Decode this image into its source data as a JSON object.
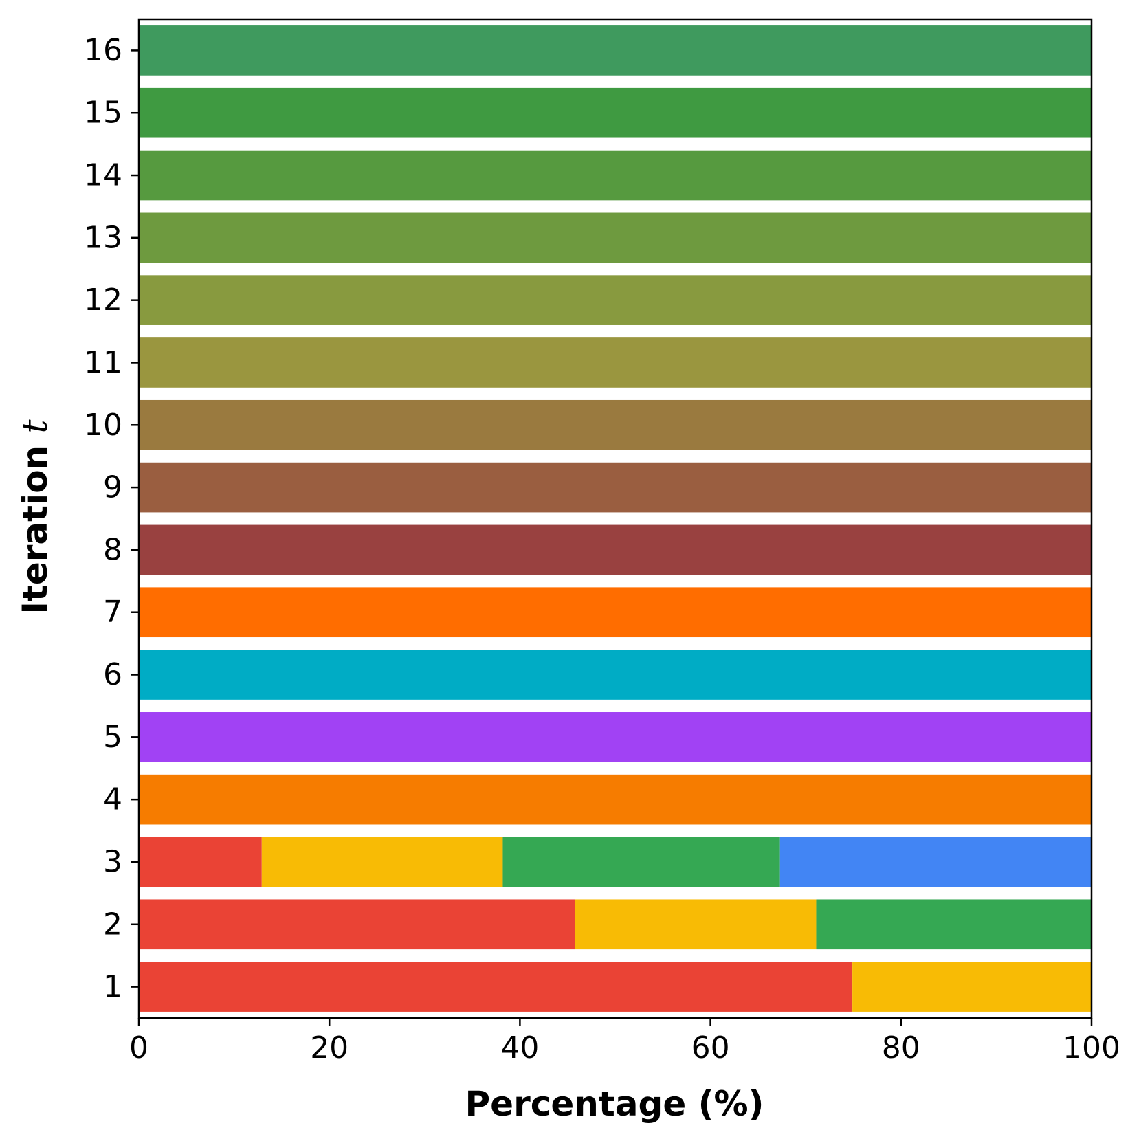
{
  "chart_data": {
    "type": "bar",
    "orientation": "horizontal",
    "stacked": true,
    "title": "",
    "xlabel": "Percentage (%)",
    "ylabel": "Iteration",
    "ylabel_var": "t",
    "xlim": [
      0,
      100
    ],
    "xticks": [
      0,
      20,
      40,
      60,
      80,
      100
    ],
    "categories": [
      "1",
      "2",
      "3",
      "4",
      "5",
      "6",
      "7",
      "8",
      "9",
      "10",
      "11",
      "12",
      "13",
      "14",
      "15",
      "16"
    ],
    "bars": [
      {
        "category": "1",
        "segments": [
          {
            "value": 74.9,
            "color": "#EA4335"
          },
          {
            "value": 25.1,
            "color": "#F8BB05"
          }
        ]
      },
      {
        "category": "2",
        "segments": [
          {
            "value": 45.8,
            "color": "#EA4335"
          },
          {
            "value": 25.3,
            "color": "#F8BB05"
          },
          {
            "value": 28.9,
            "color": "#35A853"
          }
        ]
      },
      {
        "category": "3",
        "segments": [
          {
            "value": 12.9,
            "color": "#EA4335"
          },
          {
            "value": 25.3,
            "color": "#F8BB05"
          },
          {
            "value": 29.1,
            "color": "#35A853"
          },
          {
            "value": 32.7,
            "color": "#4285F4"
          }
        ]
      },
      {
        "category": "4",
        "segments": [
          {
            "value": 100,
            "color": "#F67C00"
          }
        ]
      },
      {
        "category": "5",
        "segments": [
          {
            "value": 100,
            "color": "#A142F4"
          }
        ]
      },
      {
        "category": "6",
        "segments": [
          {
            "value": 100,
            "color": "#00ACC5"
          }
        ]
      },
      {
        "category": "7",
        "segments": [
          {
            "value": 100,
            "color": "#FF6D00"
          }
        ]
      },
      {
        "category": "8",
        "segments": [
          {
            "value": 100,
            "color": "#994140"
          }
        ]
      },
      {
        "category": "9",
        "segments": [
          {
            "value": 100,
            "color": "#9A5E40"
          }
        ]
      },
      {
        "category": "10",
        "segments": [
          {
            "value": 100,
            "color": "#9A7A3F"
          }
        ]
      },
      {
        "category": "11",
        "segments": [
          {
            "value": 100,
            "color": "#9A963F"
          }
        ]
      },
      {
        "category": "12",
        "segments": [
          {
            "value": 100,
            "color": "#889A3F"
          }
        ]
      },
      {
        "category": "13",
        "segments": [
          {
            "value": 100,
            "color": "#6E9A3F"
          }
        ]
      },
      {
        "category": "14",
        "segments": [
          {
            "value": 100,
            "color": "#569A3F"
          }
        ]
      },
      {
        "category": "15",
        "segments": [
          {
            "value": 100,
            "color": "#3F9A41"
          }
        ]
      },
      {
        "category": "16",
        "segments": [
          {
            "value": 100,
            "color": "#3F9A5E"
          }
        ]
      }
    ]
  }
}
